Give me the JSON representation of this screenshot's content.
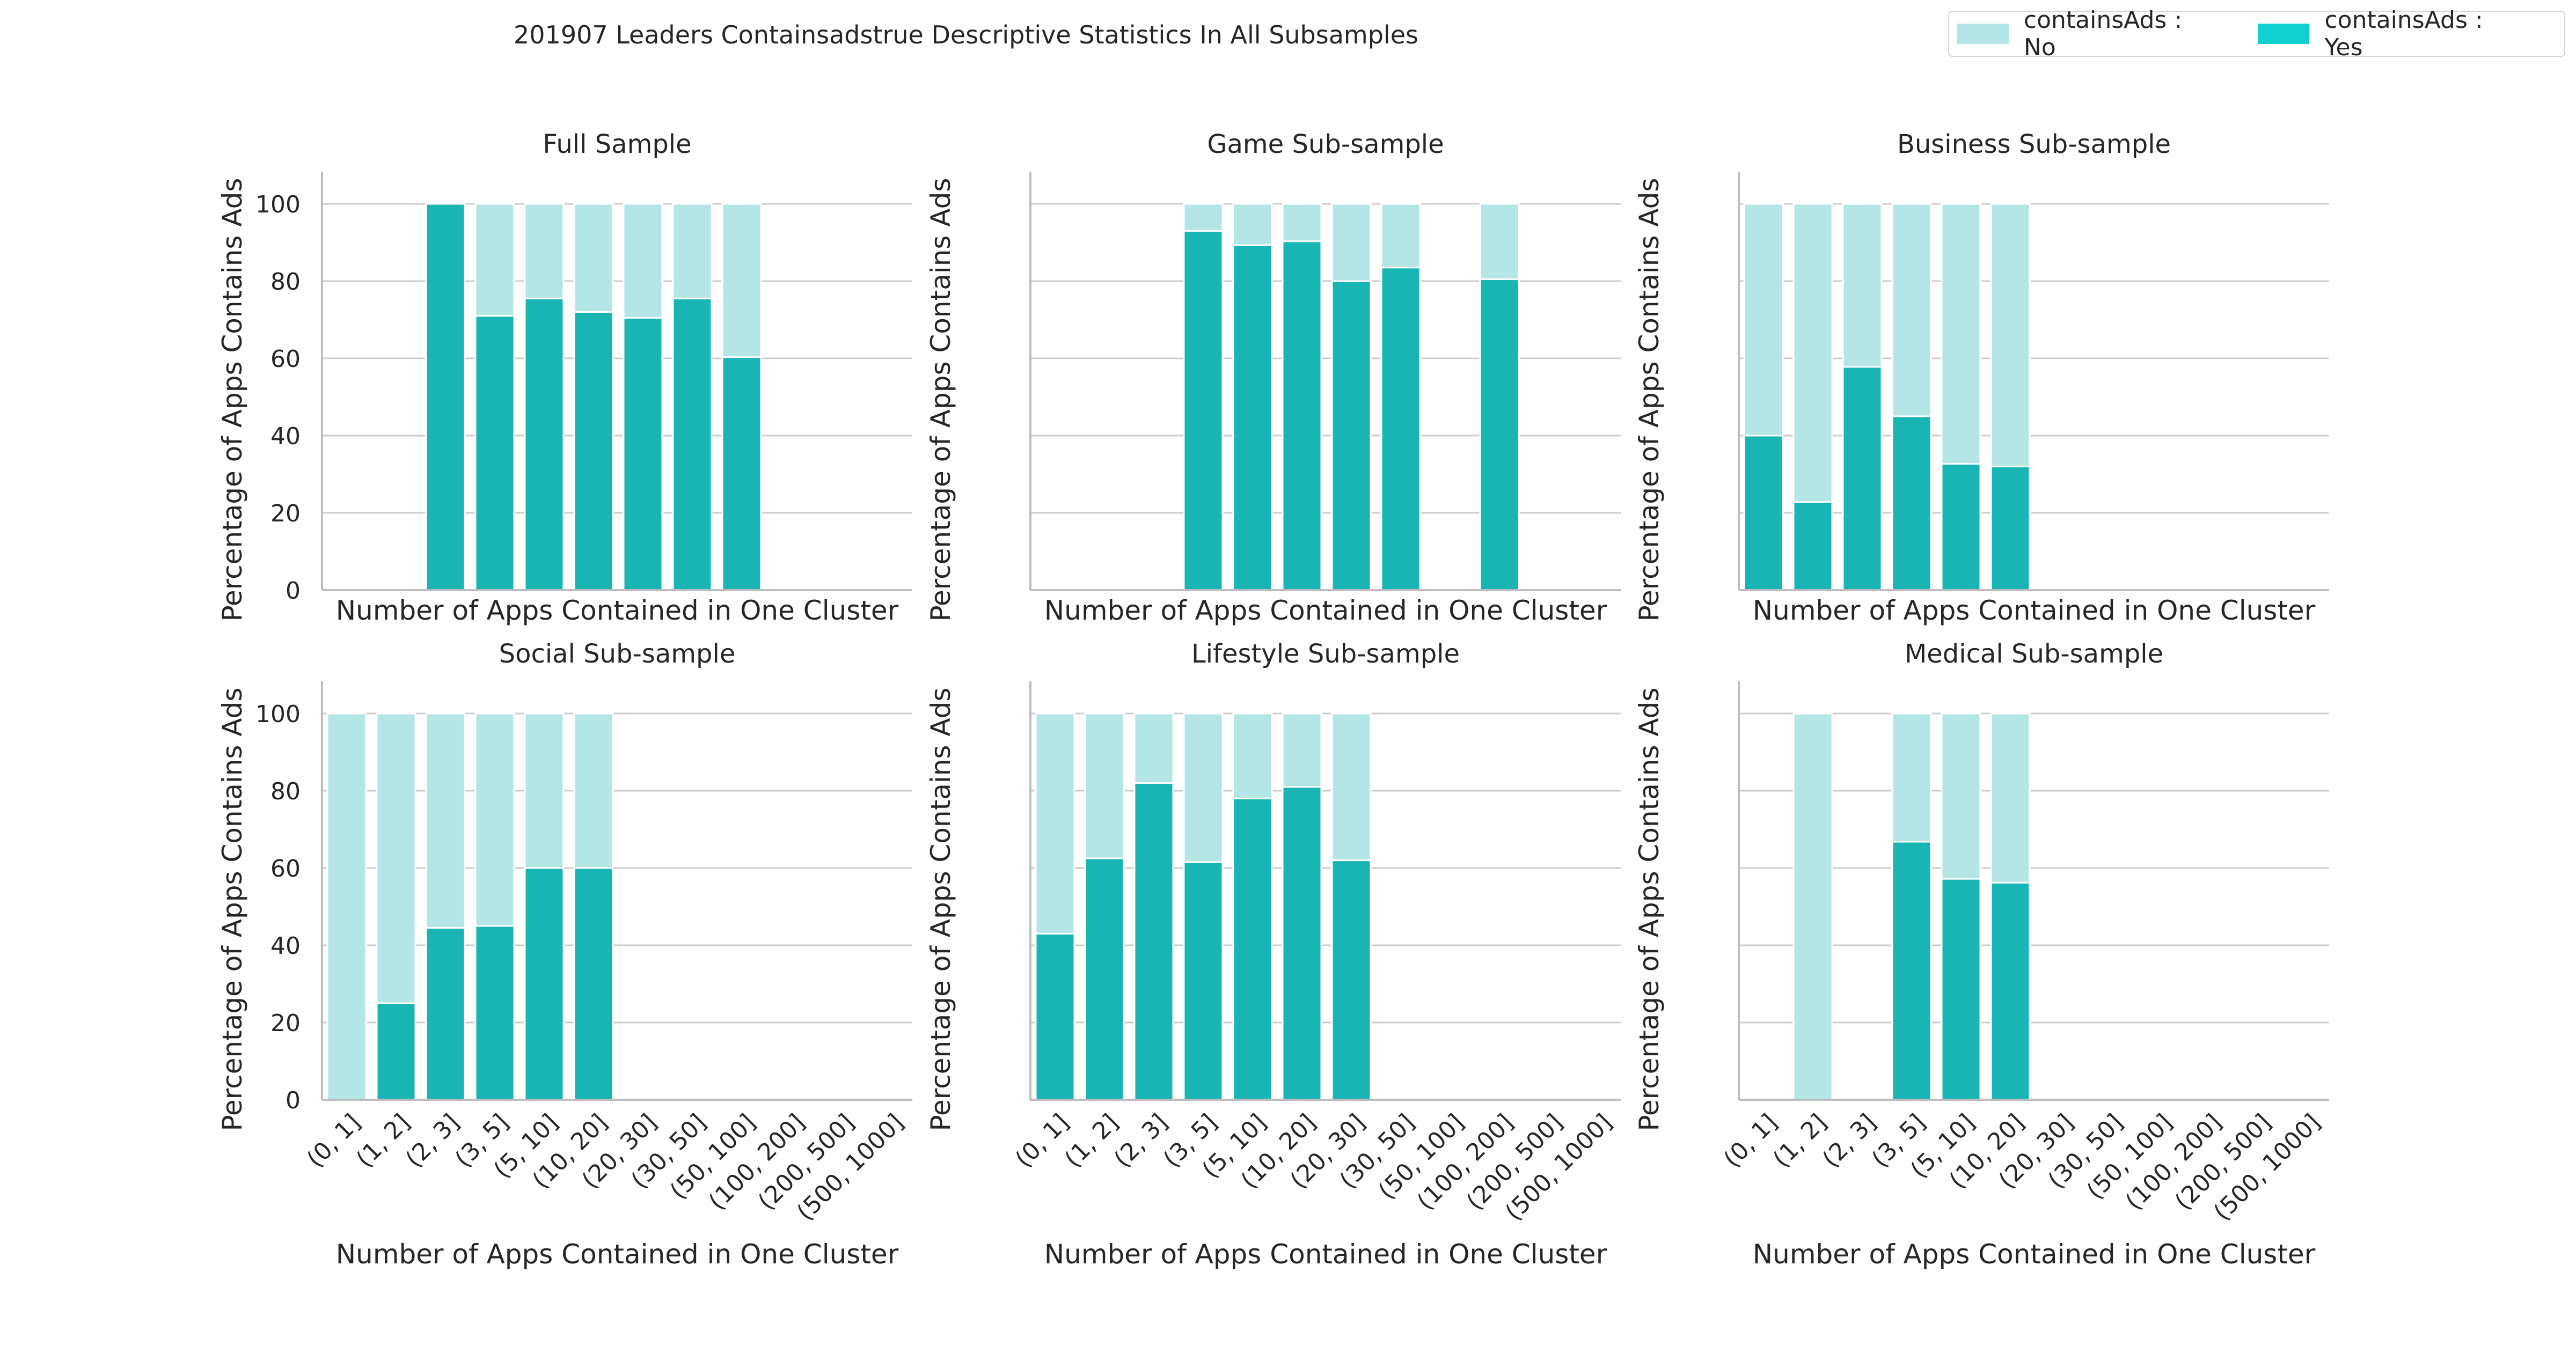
{
  "title": "201907 Leaders Containsadstrue Descriptive Statistics In All Subsamples",
  "legend": {
    "no_label": "containsAds : No",
    "yes_label": "containsAds : Yes",
    "no_color": "#b3e6e5",
    "yes_color": "#19b4b4"
  },
  "chart_data": [
    {
      "type": "bar",
      "stacked": true,
      "title": "Full Sample",
      "xlabel": "Number of Apps Contained in One Cluster",
      "ylabel": "Percentage of Apps Contains Ads",
      "ylim": [
        0,
        105
      ],
      "yticks": [
        0,
        20,
        40,
        60,
        80,
        100
      ],
      "show_ytick_labels": true,
      "show_xtick_labels": false,
      "grid": "horizontal",
      "categories": [
        "(0, 1]",
        "(1, 2]",
        "(2, 3]",
        "(3, 5]",
        "(5, 10]",
        "(10, 20]",
        "(20, 30]",
        "(30, 50]",
        "(50, 100]",
        "(100, 200]",
        "(200, 500]",
        "(500, 1000]"
      ],
      "series": [
        {
          "name": "containsAds : Yes",
          "values": [
            null,
            null,
            100,
            71,
            75.5,
            72,
            70.5,
            75.5,
            60.3,
            null,
            null,
            null
          ]
        },
        {
          "name": "containsAds : No",
          "values": [
            null,
            null,
            0,
            29,
            24.5,
            28,
            29.5,
            24.5,
            39.7,
            null,
            null,
            null
          ]
        }
      ]
    },
    {
      "type": "bar",
      "stacked": true,
      "title": "Game Sub-sample",
      "xlabel": "Number of Apps Contained in One Cluster",
      "ylabel": "Percentage of Apps Contains Ads",
      "ylim": [
        0,
        105
      ],
      "yticks": [
        0,
        20,
        40,
        60,
        80,
        100
      ],
      "show_ytick_labels": false,
      "show_xtick_labels": false,
      "grid": "horizontal",
      "categories": [
        "(0, 1]",
        "(1, 2]",
        "(2, 3]",
        "(3, 5]",
        "(5, 10]",
        "(10, 20]",
        "(20, 30]",
        "(30, 50]",
        "(50, 100]",
        "(100, 200]",
        "(200, 500]",
        "(500, 1000]"
      ],
      "series": [
        {
          "name": "containsAds : Yes",
          "values": [
            null,
            null,
            null,
            93,
            89.3,
            90.3,
            80,
            83.5,
            null,
            80.5,
            null,
            null
          ]
        },
        {
          "name": "containsAds : No",
          "values": [
            null,
            null,
            null,
            7,
            10.7,
            9.7,
            20,
            16.5,
            null,
            19.5,
            null,
            null
          ]
        }
      ]
    },
    {
      "type": "bar",
      "stacked": true,
      "title": "Business Sub-sample",
      "xlabel": "Number of Apps Contained in One Cluster",
      "ylabel": "Percentage of Apps Contains Ads",
      "ylim": [
        0,
        105
      ],
      "yticks": [
        0,
        20,
        40,
        60,
        80,
        100
      ],
      "show_ytick_labels": false,
      "show_xtick_labels": false,
      "grid": "horizontal",
      "categories": [
        "(0, 1]",
        "(1, 2]",
        "(2, 3]",
        "(3, 5]",
        "(5, 10]",
        "(10, 20]",
        "(20, 30]",
        "(30, 50]",
        "(50, 100]",
        "(100, 200]",
        "(200, 500]",
        "(500, 1000]"
      ],
      "series": [
        {
          "name": "containsAds : Yes",
          "values": [
            40,
            22.8,
            57.8,
            45,
            32.7,
            32,
            null,
            null,
            null,
            null,
            null,
            null
          ]
        },
        {
          "name": "containsAds : No",
          "values": [
            60,
            77.2,
            42.2,
            55,
            67.3,
            68,
            null,
            null,
            null,
            null,
            null,
            null
          ]
        }
      ]
    },
    {
      "type": "bar",
      "stacked": true,
      "title": "Social Sub-sample",
      "xlabel": "Number of Apps Contained in One Cluster",
      "ylabel": "Percentage of Apps Contains Ads",
      "ylim": [
        0,
        105
      ],
      "yticks": [
        0,
        20,
        40,
        60,
        80,
        100
      ],
      "show_ytick_labels": true,
      "show_xtick_labels": true,
      "grid": "horizontal",
      "categories": [
        "(0, 1]",
        "(1, 2]",
        "(2, 3]",
        "(3, 5]",
        "(5, 10]",
        "(10, 20]",
        "(20, 30]",
        "(30, 50]",
        "(50, 100]",
        "(100, 200]",
        "(200, 500]",
        "(500, 1000]"
      ],
      "series": [
        {
          "name": "containsAds : Yes",
          "values": [
            0,
            25,
            44.5,
            45,
            60,
            60,
            null,
            null,
            null,
            null,
            null,
            null
          ]
        },
        {
          "name": "containsAds : No",
          "values": [
            100,
            75,
            55.5,
            55,
            40,
            40,
            null,
            null,
            null,
            null,
            null,
            null
          ]
        }
      ]
    },
    {
      "type": "bar",
      "stacked": true,
      "title": "Lifestyle Sub-sample",
      "xlabel": "Number of Apps Contained in One Cluster",
      "ylabel": "Percentage of Apps Contains Ads",
      "ylim": [
        0,
        105
      ],
      "yticks": [
        0,
        20,
        40,
        60,
        80,
        100
      ],
      "show_ytick_labels": false,
      "show_xtick_labels": true,
      "grid": "horizontal",
      "categories": [
        "(0, 1]",
        "(1, 2]",
        "(2, 3]",
        "(3, 5]",
        "(5, 10]",
        "(10, 20]",
        "(20, 30]",
        "(30, 50]",
        "(50, 100]",
        "(100, 200]",
        "(200, 500]",
        "(500, 1000]"
      ],
      "series": [
        {
          "name": "containsAds : Yes",
          "values": [
            43,
            62.5,
            82,
            61.5,
            78,
            81,
            62,
            null,
            null,
            null,
            null,
            null
          ]
        },
        {
          "name": "containsAds : No",
          "values": [
            57,
            37.5,
            18,
            38.5,
            22,
            19,
            38,
            null,
            null,
            null,
            null,
            null
          ]
        }
      ]
    },
    {
      "type": "bar",
      "stacked": true,
      "title": "Medical Sub-sample",
      "xlabel": "Number of Apps Contained in One Cluster",
      "ylabel": "Percentage of Apps Contains Ads",
      "ylim": [
        0,
        105
      ],
      "yticks": [
        0,
        20,
        40,
        60,
        80,
        100
      ],
      "show_ytick_labels": false,
      "show_xtick_labels": true,
      "grid": "horizontal",
      "categories": [
        "(0, 1]",
        "(1, 2]",
        "(2, 3]",
        "(3, 5]",
        "(5, 10]",
        "(10, 20]",
        "(20, 30]",
        "(30, 50]",
        "(50, 100]",
        "(100, 200]",
        "(200, 500]",
        "(500, 1000]"
      ],
      "series": [
        {
          "name": "containsAds : Yes",
          "values": [
            null,
            0,
            null,
            66.8,
            57.2,
            56.2,
            null,
            null,
            null,
            null,
            null,
            null
          ]
        },
        {
          "name": "containsAds : No",
          "values": [
            null,
            100,
            null,
            33.2,
            42.8,
            43.8,
            null,
            null,
            null,
            null,
            null,
            null
          ]
        }
      ]
    }
  ]
}
